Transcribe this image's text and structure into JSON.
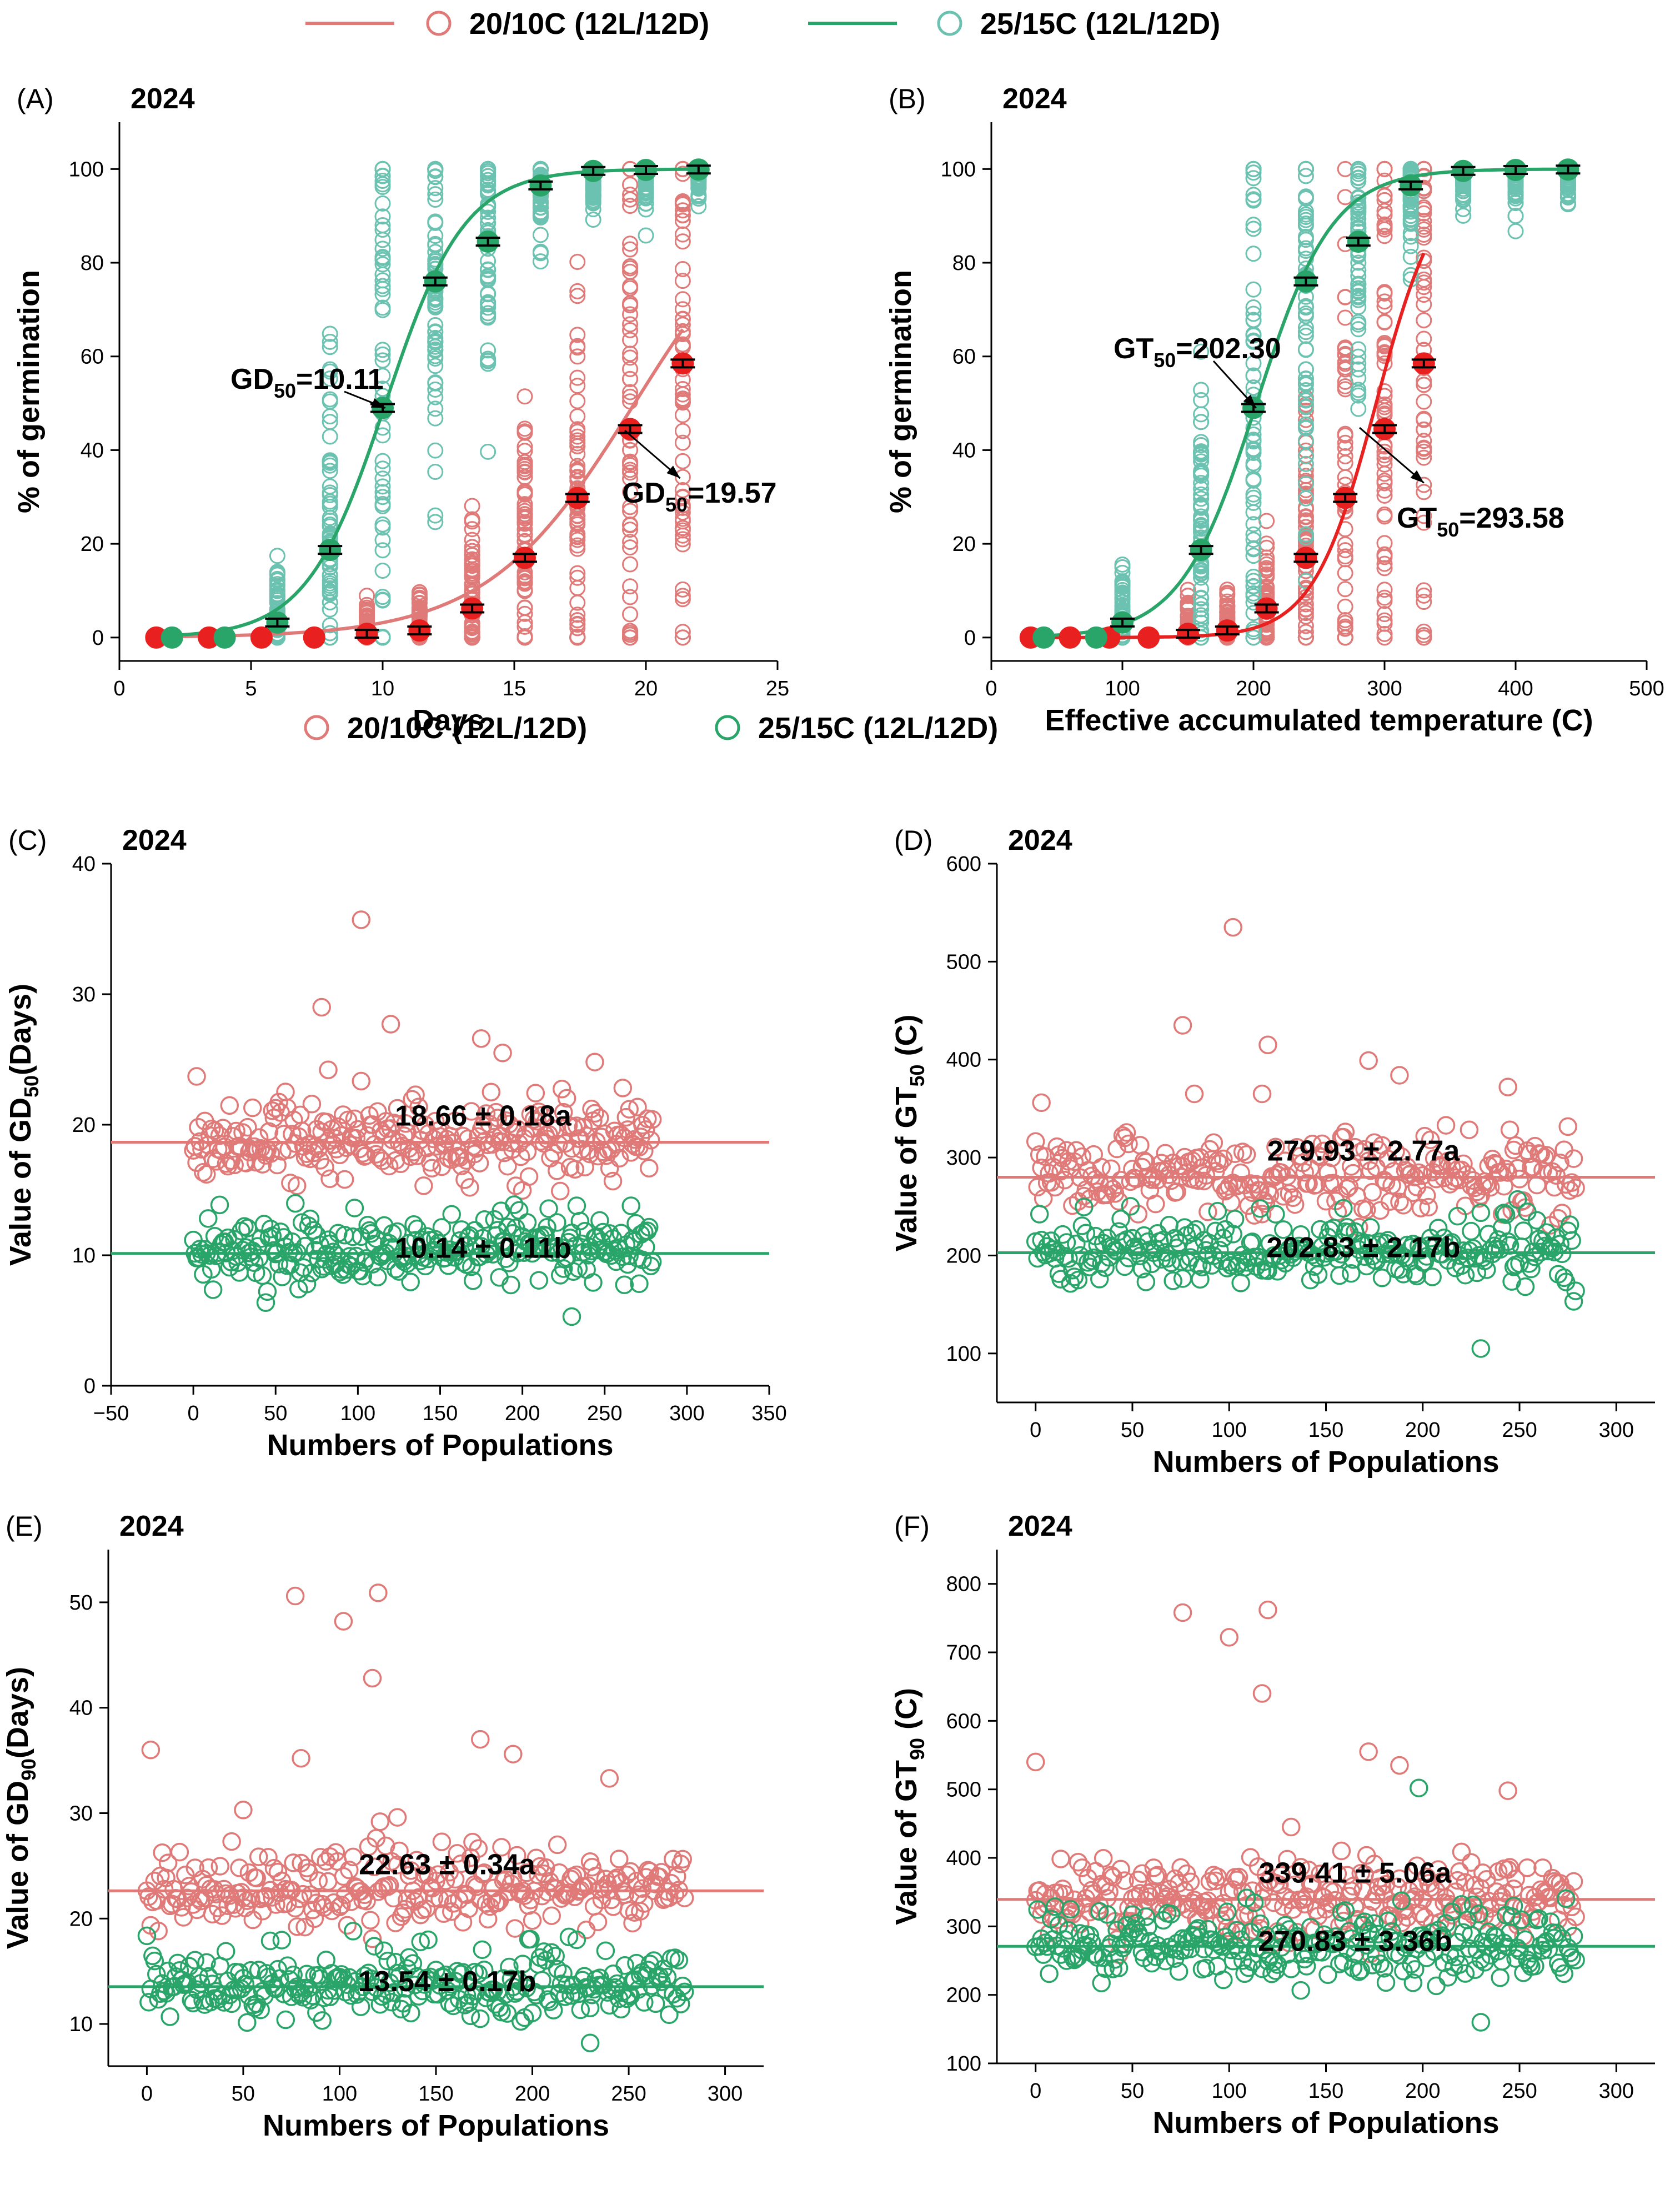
{
  "colors": {
    "cool": "#e07a78",
    "warm": "#2aa56a",
    "cool_fill": "#e8201f",
    "warm_fill": "#2aa56a",
    "warm_open": "#6cc2b0"
  },
  "legend_top": {
    "items": [
      "20/10C (12L/12D)",
      "25/15C (12L/12D)"
    ]
  },
  "legend_mid": {
    "items": [
      "20/10C  (12L/12D)",
      "25/15C  (12L/12D)"
    ]
  },
  "chart_data": [
    {
      "panel": "(A)",
      "year": "2024",
      "type": "scatter",
      "xlabel": "Days",
      "ylabel": "% of germination",
      "xlim": [
        0,
        25
      ],
      "ylim": [
        -5,
        110
      ],
      "xticks": [
        0,
        5,
        10,
        15,
        20,
        25
      ],
      "yticks": [
        0,
        20,
        40,
        60,
        80,
        100
      ],
      "series": [
        {
          "name": "20/10C (12L/12D)",
          "means_x": [
            1.4,
            3.4,
            5.4,
            7.4,
            9.4,
            11.4,
            13.4,
            15.4,
            17.4,
            19.4,
            21.4
          ],
          "means_y": [
            0,
            0,
            0,
            0,
            0.8,
            1.5,
            6.2,
            17,
            29.8,
            44.5,
            58.5
          ],
          "fit_mid": 19.57,
          "fit_scale": 2.8,
          "fit_max": 100
        },
        {
          "name": "25/15C (12L/12D)",
          "means_x": [
            2,
            4,
            6,
            8,
            10,
            12,
            14,
            16,
            18,
            20,
            22
          ],
          "means_y": [
            0,
            0,
            3.2,
            18.7,
            49,
            76,
            84.5,
            96.5,
            99.6,
            99.8,
            99.9
          ],
          "fit_mid": 10.11,
          "fit_scale": 1.5,
          "fit_max": 100
        }
      ],
      "annotations": [
        {
          "label": "GD",
          "sub": "50",
          "value": "=10.11"
        },
        {
          "label": "GD",
          "sub": "50",
          "value": "=19.57"
        }
      ]
    },
    {
      "panel": "(B)",
      "year": "2024",
      "type": "scatter",
      "xlabel": "Effective accumulated temperature (C)",
      "ylabel": "% of germination",
      "xlim": [
        0,
        500
      ],
      "ylim": [
        -5,
        110
      ],
      "xticks": [
        0,
        100,
        200,
        300,
        400,
        500
      ],
      "yticks": [
        0,
        20,
        40,
        60,
        80,
        100
      ],
      "series": [
        {
          "name": "20/10C (12L/12D)",
          "means_x": [
            30,
            60,
            90,
            120,
            150,
            180,
            210,
            240,
            270,
            300,
            330
          ],
          "means_y": [
            0,
            0,
            0,
            0,
            0.8,
            1.5,
            6.2,
            17,
            29.8,
            44.5,
            58.5
          ],
          "fit_mid": 293.58,
          "fit_scale": 24,
          "fit_max": 100
        },
        {
          "name": "25/15C (12L/12D)",
          "means_x": [
            40,
            80,
            100,
            160,
            200,
            240,
            280,
            320,
            360,
            400,
            440
          ],
          "means_y": [
            0,
            0,
            3.2,
            18.7,
            49,
            76,
            84.5,
            96.5,
            99.6,
            99.8,
            99.9
          ],
          "fit_mid": 202.3,
          "fit_scale": 29,
          "fit_max": 100
        }
      ],
      "annotations": [
        {
          "label": "GT",
          "sub": "50",
          "value": "=202.30"
        },
        {
          "label": "GT",
          "sub": "50",
          "value": "=293.58"
        }
      ]
    },
    {
      "panel": "(C)",
      "year": "2024",
      "type": "scatter",
      "xlabel": "Numbers of Populations",
      "ylabel": "Value of GD50(Days)",
      "xlim": [
        -50,
        350
      ],
      "ylim": [
        0,
        40
      ],
      "xticks": [
        -50,
        0,
        50,
        100,
        150,
        200,
        250,
        300,
        350
      ],
      "yticks": [
        0,
        10,
        20,
        30,
        40
      ],
      "series": [
        {
          "name": "20/10C (12L/12D)",
          "mean": 18.66,
          "label": "18.66 ± 0.18a",
          "n": 280
        },
        {
          "name": "25/15C (12L/12D)",
          "mean": 10.14,
          "label": "10.14 ± 0.11b",
          "n": 280
        }
      ],
      "outliers": [
        [
          2,
          23.7
        ],
        [
          78,
          29
        ],
        [
          82,
          24.2
        ],
        [
          102,
          35.7
        ],
        [
          120,
          27.7
        ],
        [
          175,
          26.6
        ],
        [
          188,
          25.5
        ],
        [
          244,
          24.8
        ],
        [
          230,
          5.3
        ]
      ]
    },
    {
      "panel": "(D)",
      "year": "2024",
      "type": "scatter",
      "xlabel": "Numbers of Populations",
      "ylabel": "Value of GT50 (C)",
      "xlim": [
        -20,
        320
      ],
      "ylim": [
        50,
        600
      ],
      "xticks": [
        0,
        50,
        100,
        150,
        200,
        250,
        300
      ],
      "yticks": [
        100,
        200,
        300,
        400,
        500,
        600
      ],
      "series": [
        {
          "name": "20/10C (12L/12D)",
          "mean": 279.93,
          "label": "279.93 ± 2.77a",
          "n": 280
        },
        {
          "name": "25/15C (12L/12D)",
          "mean": 202.83,
          "label": "202.83 ± 2.17b",
          "n": 280
        }
      ],
      "outliers": [
        [
          3,
          356
        ],
        [
          76,
          435
        ],
        [
          102,
          535
        ],
        [
          120,
          415
        ],
        [
          82,
          365
        ],
        [
          117,
          365
        ],
        [
          172,
          399
        ],
        [
          188,
          384
        ],
        [
          244,
          372
        ],
        [
          230,
          105
        ]
      ]
    },
    {
      "panel": "(E)",
      "year": "2024",
      "type": "scatter",
      "xlabel": "Numbers of Populations",
      "ylabel": "Value of GD90(Days)",
      "xlim": [
        -20,
        320
      ],
      "ylim": [
        6,
        55
      ],
      "xticks": [
        0,
        50,
        100,
        150,
        200,
        250,
        300
      ],
      "yticks": [
        10,
        20,
        30,
        40,
        50
      ],
      "series": [
        {
          "name": "20/10C (12L/12D)",
          "mean": 22.63,
          "label": "22.63 ± 0.34a",
          "n": 280
        },
        {
          "name": "25/15C (12L/12D)",
          "mean": 13.54,
          "label": "13.54 ± 0.17b",
          "n": 280
        }
      ],
      "outliers": [
        [
          2,
          36
        ],
        [
          77,
          50.6
        ],
        [
          102,
          48.2
        ],
        [
          117,
          42.8
        ],
        [
          120,
          50.9
        ],
        [
          80,
          35.2
        ],
        [
          50,
          30.3
        ],
        [
          173,
          37
        ],
        [
          190,
          35.6
        ],
        [
          240,
          33.3
        ],
        [
          130,
          29.6
        ],
        [
          230,
          8.2
        ]
      ]
    },
    {
      "panel": "(F)",
      "year": "2024",
      "type": "scatter",
      "xlabel": "Numbers of Populations",
      "ylabel": "Value of GT90 (C)",
      "xlim": [
        -20,
        320
      ],
      "ylim": [
        100,
        850
      ],
      "xticks": [
        0,
        50,
        100,
        150,
        200,
        250,
        300
      ],
      "yticks": [
        100,
        200,
        300,
        400,
        500,
        600,
        700,
        800
      ],
      "series": [
        {
          "name": "20/10C (12L/12D)",
          "mean": 339.41,
          "label": "339.41 ± 5.06a",
          "n": 280
        },
        {
          "name": "25/15C (12L/12D)",
          "mean": 270.83,
          "label": "270.83 ± 3.36b",
          "n": 280
        }
      ],
      "outliers": [
        [
          0,
          540
        ],
        [
          76,
          758
        ],
        [
          100,
          722
        ],
        [
          117,
          640
        ],
        [
          120,
          762
        ],
        [
          132,
          445
        ],
        [
          172,
          555
        ],
        [
          188,
          535
        ],
        [
          244,
          498
        ],
        [
          198,
          502
        ],
        [
          230,
          160
        ]
      ]
    }
  ]
}
